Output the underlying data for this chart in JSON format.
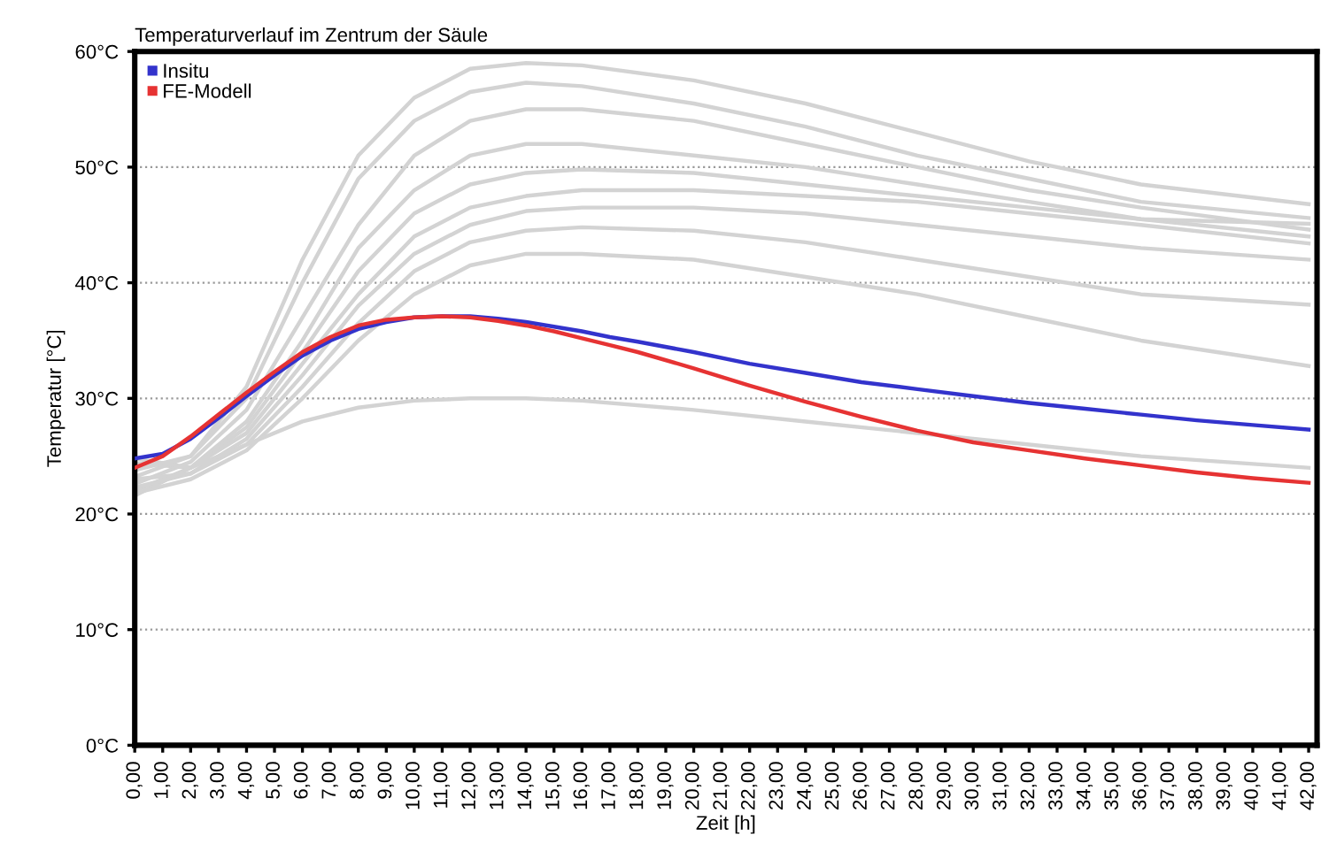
{
  "chart_data": {
    "type": "line",
    "title": "Temperaturverlauf im Zentrum der Säule",
    "xlabel": "Zeit [h]",
    "ylabel": "Temperatur [°C]",
    "xlim": [
      0,
      42.3
    ],
    "ylim": [
      0,
      60
    ],
    "xticks": [
      {
        "value": 0,
        "label": "0,00"
      },
      {
        "value": 1,
        "label": "1,00"
      },
      {
        "value": 2,
        "label": "2,00"
      },
      {
        "value": 3,
        "label": "3,00"
      },
      {
        "value": 4,
        "label": "4,00"
      },
      {
        "value": 5,
        "label": "5,00"
      },
      {
        "value": 6,
        "label": "6,00"
      },
      {
        "value": 7,
        "label": "7,00"
      },
      {
        "value": 8,
        "label": "8,00"
      },
      {
        "value": 9,
        "label": "9,00"
      },
      {
        "value": 10,
        "label": "10,00"
      },
      {
        "value": 11,
        "label": "11,00"
      },
      {
        "value": 12,
        "label": "12,00"
      },
      {
        "value": 13,
        "label": "13,00"
      },
      {
        "value": 14,
        "label": "14,00"
      },
      {
        "value": 15,
        "label": "15,00"
      },
      {
        "value": 16,
        "label": "16,00"
      },
      {
        "value": 17,
        "label": "17,00"
      },
      {
        "value": 18,
        "label": "18,00"
      },
      {
        "value": 19,
        "label": "19,00"
      },
      {
        "value": 20,
        "label": "20,00"
      },
      {
        "value": 21,
        "label": "21,00"
      },
      {
        "value": 22,
        "label": "22,00"
      },
      {
        "value": 23,
        "label": "23,00"
      },
      {
        "value": 24,
        "label": "24,00"
      },
      {
        "value": 25,
        "label": "25,00"
      },
      {
        "value": 26,
        "label": "26,00"
      },
      {
        "value": 27,
        "label": "27,00"
      },
      {
        "value": 28,
        "label": "28,00"
      },
      {
        "value": 29,
        "label": "29,00"
      },
      {
        "value": 30,
        "label": "30,00"
      },
      {
        "value": 31,
        "label": "31,00"
      },
      {
        "value": 32,
        "label": "32,00"
      },
      {
        "value": 33,
        "label": "33,00"
      },
      {
        "value": 34,
        "label": "34,00"
      },
      {
        "value": 35,
        "label": "35,00"
      },
      {
        "value": 36,
        "label": "36,00"
      },
      {
        "value": 37,
        "label": "37,00"
      },
      {
        "value": 38,
        "label": "38,00"
      },
      {
        "value": 39,
        "label": "39,00"
      },
      {
        "value": 40,
        "label": "40,00"
      },
      {
        "value": 41,
        "label": "41,00"
      },
      {
        "value": 42,
        "label": "42,00"
      }
    ],
    "yticks": [
      {
        "value": 0,
        "label": "0°C"
      },
      {
        "value": 10,
        "label": "10°C"
      },
      {
        "value": 20,
        "label": "20°C"
      },
      {
        "value": 30,
        "label": "30°C"
      },
      {
        "value": 40,
        "label": "40°C"
      },
      {
        "value": 50,
        "label": "50°C"
      },
      {
        "value": 60,
        "label": "60°C"
      }
    ],
    "grid": "y",
    "legend": "top left",
    "marker": "none",
    "line_style": "solid",
    "series": [
      {
        "color": "#d3d3d3",
        "x": [
          0,
          2,
          4,
          6,
          8,
          10,
          12,
          14,
          16,
          20,
          24,
          28,
          32,
          36,
          42
        ],
        "values": [
          23.8,
          25,
          31,
          42,
          51,
          56,
          58.5,
          59,
          58.8,
          57.5,
          55.5,
          53,
          50.5,
          48.5,
          46.8
        ]
      },
      {
        "color": "#d3d3d3",
        "x": [
          0,
          2,
          4,
          6,
          8,
          10,
          12,
          14,
          16,
          20,
          24,
          28,
          32,
          36,
          42
        ],
        "values": [
          23.2,
          25,
          30,
          40,
          49,
          54,
          56.5,
          57.3,
          57,
          55.5,
          53.5,
          51,
          49,
          47,
          45.6
        ]
      },
      {
        "color": "#d3d3d3",
        "x": [
          0,
          2,
          4,
          6,
          8,
          10,
          12,
          14,
          16,
          20,
          24,
          28,
          32,
          36,
          42
        ],
        "values": [
          22.6,
          24.5,
          29,
          37,
          45,
          51,
          54,
          55,
          55,
          54,
          52,
          50,
          48,
          46.5,
          44.6
        ]
      },
      {
        "color": "#d3d3d3",
        "x": [
          0,
          2,
          4,
          6,
          8,
          10,
          12,
          14,
          16,
          20,
          24,
          28,
          32,
          36,
          42
        ],
        "values": [
          22,
          24,
          28,
          35,
          43,
          48,
          51,
          52,
          52,
          51,
          50,
          48.5,
          47,
          45.5,
          44
        ]
      },
      {
        "color": "#d3d3d3",
        "x": [
          0,
          2,
          4,
          6,
          8,
          10,
          12,
          14,
          16,
          20,
          24,
          28,
          32,
          36,
          42
        ],
        "values": [
          24.4,
          24,
          27.5,
          34,
          41,
          46,
          48.5,
          49.5,
          49.8,
          49.5,
          48.5,
          47.5,
          46.5,
          45.5,
          45.1
        ]
      },
      {
        "color": "#d3d3d3",
        "x": [
          0,
          2,
          4,
          6,
          8,
          10,
          12,
          14,
          16,
          20,
          24,
          28,
          32,
          36,
          42
        ],
        "values": [
          21.6,
          24,
          27,
          33,
          39,
          44,
          46.5,
          47.5,
          48,
          48,
          47.5,
          47,
          46,
          45,
          43.4
        ]
      },
      {
        "color": "#d3d3d3",
        "x": [
          0,
          2,
          4,
          6,
          8,
          10,
          12,
          14,
          16,
          20,
          24,
          28,
          32,
          36,
          42
        ],
        "values": [
          23,
          23.5,
          26.5,
          32,
          38,
          42.5,
          45,
          46.2,
          46.5,
          46.5,
          46,
          45,
          44,
          43,
          42
        ]
      },
      {
        "color": "#d3d3d3",
        "x": [
          0,
          2,
          4,
          6,
          8,
          10,
          12,
          14,
          16,
          20,
          24,
          28,
          32,
          36,
          42
        ],
        "values": [
          22.3,
          23.5,
          26,
          31,
          36.5,
          41,
          43.5,
          44.5,
          44.8,
          44.5,
          43.5,
          42,
          40.5,
          39,
          38.1
        ]
      },
      {
        "color": "#d3d3d3",
        "x": [
          0,
          2,
          4,
          6,
          8,
          10,
          12,
          14,
          16,
          20,
          24,
          28,
          32,
          36,
          42
        ],
        "values": [
          21.8,
          23,
          25.5,
          30,
          35,
          39,
          41.5,
          42.5,
          42.5,
          42,
          40.5,
          39,
          37,
          35,
          32.8
        ]
      },
      {
        "color": "#d3d3d3",
        "x": [
          0,
          2,
          4,
          6,
          8,
          10,
          12,
          14,
          16,
          20,
          24,
          28,
          32,
          36,
          42
        ],
        "values": [
          24.8,
          24,
          26,
          28,
          29.2,
          29.8,
          30,
          30,
          29.8,
          29,
          28,
          27,
          26,
          25,
          24
        ]
      },
      {
        "name": "Insitu",
        "color": "#3333cc",
        "x": [
          0,
          1,
          2,
          3,
          4,
          5,
          6,
          7,
          8,
          9,
          10,
          11,
          12,
          13,
          14,
          15,
          16,
          17,
          18,
          20,
          22,
          24,
          26,
          28,
          30,
          32,
          34,
          36,
          38,
          40,
          42
        ],
        "values": [
          24.8,
          25.2,
          26.5,
          28.3,
          30.2,
          32,
          33.7,
          35,
          36,
          36.6,
          37,
          37.1,
          37.1,
          36.9,
          36.6,
          36.2,
          35.8,
          35.3,
          34.9,
          34,
          33,
          32.2,
          31.4,
          30.8,
          30.2,
          29.6,
          29.1,
          28.6,
          28.1,
          27.7,
          27.3
        ]
      },
      {
        "name": "FE-Modell",
        "color": "#e63333",
        "x": [
          0,
          1,
          2,
          3,
          4,
          5,
          6,
          7,
          8,
          9,
          10,
          11,
          12,
          13,
          14,
          15,
          16,
          17,
          18,
          20,
          22,
          24,
          26,
          28,
          30,
          32,
          34,
          36,
          38,
          40,
          42
        ],
        "values": [
          24,
          25,
          26.7,
          28.6,
          30.5,
          32.3,
          34,
          35.3,
          36.3,
          36.8,
          37,
          37.1,
          37,
          36.7,
          36.3,
          35.8,
          35.2,
          34.6,
          34,
          32.6,
          31.1,
          29.7,
          28.4,
          27.2,
          26.2,
          25.5,
          24.8,
          24.2,
          23.6,
          23.1,
          22.7
        ]
      }
    ]
  }
}
